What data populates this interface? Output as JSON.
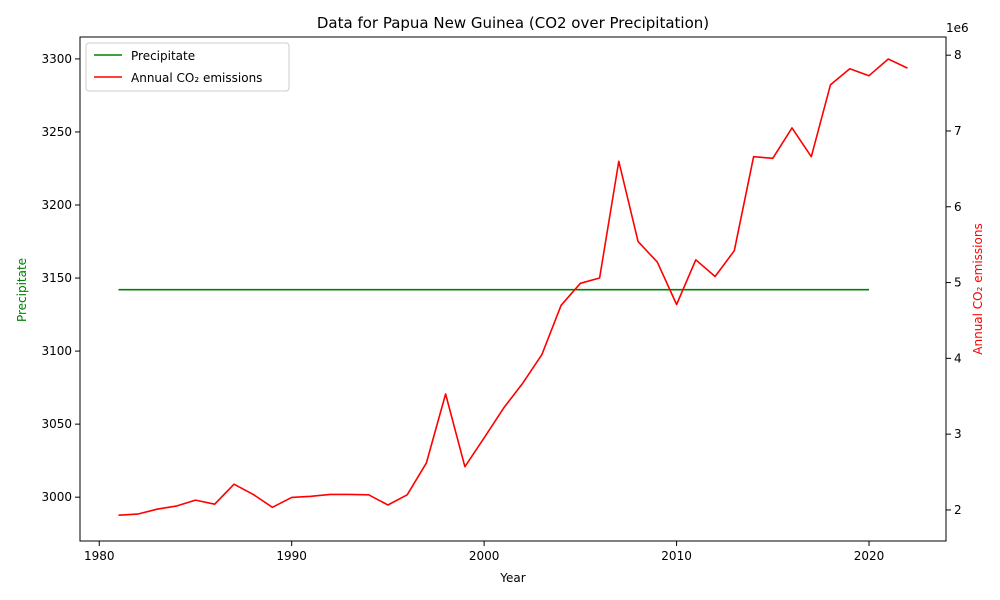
{
  "chart_data": {
    "type": "line",
    "title": "Data for Papua New Guinea (CO2 over Precipitation)",
    "xlabel": "Year",
    "ylabel_left": "Precipitate",
    "ylabel_right": "Annual CO₂ emissions",
    "right_axis_offset": "1e6",
    "xlim": [
      1979,
      2024
    ],
    "ylim_left": [
      2970,
      3315
    ],
    "ylim_right": [
      1590000,
      8240000
    ],
    "x_ticks": [
      1980,
      1990,
      2000,
      2010,
      2020
    ],
    "y_ticks_left": [
      3000,
      3050,
      3100,
      3150,
      3200,
      3250,
      3300
    ],
    "y_ticks_right": [
      2,
      3,
      4,
      5,
      6,
      7,
      8
    ],
    "legend_position": "top-left",
    "series": [
      {
        "name": "Precipitate",
        "axis": "left",
        "color": "#008000",
        "x": [
          1981,
          2020
        ],
        "values": [
          3142,
          3142
        ]
      },
      {
        "name": "Annual CO₂ emissions",
        "axis": "right",
        "color": "#ff0000",
        "x": [
          1981,
          1982,
          1983,
          1984,
          1985,
          1986,
          1987,
          1988,
          1989,
          1990,
          1991,
          1992,
          1993,
          1994,
          1995,
          1996,
          1997,
          1998,
          1999,
          2000,
          2001,
          2002,
          2003,
          2004,
          2005,
          2006,
          2007,
          2008,
          2009,
          2010,
          2011,
          2012,
          2013,
          2014,
          2015,
          2016,
          2017,
          2018,
          2019,
          2020,
          2021,
          2022
        ],
        "values": [
          1930000,
          1945000,
          2010000,
          2050000,
          2130000,
          2075000,
          2340000,
          2205000,
          2035000,
          2165000,
          2180000,
          2205000,
          2205000,
          2200000,
          2065000,
          2200000,
          2620000,
          3530000,
          2570000,
          2950000,
          3340000,
          3670000,
          4050000,
          4700000,
          4990000,
          5060000,
          6600000,
          5540000,
          5270000,
          4710000,
          5300000,
          5080000,
          5420000,
          6660000,
          6640000,
          7040000,
          6660000,
          7610000,
          7820000,
          7730000,
          7950000,
          7830000
        ]
      }
    ]
  }
}
